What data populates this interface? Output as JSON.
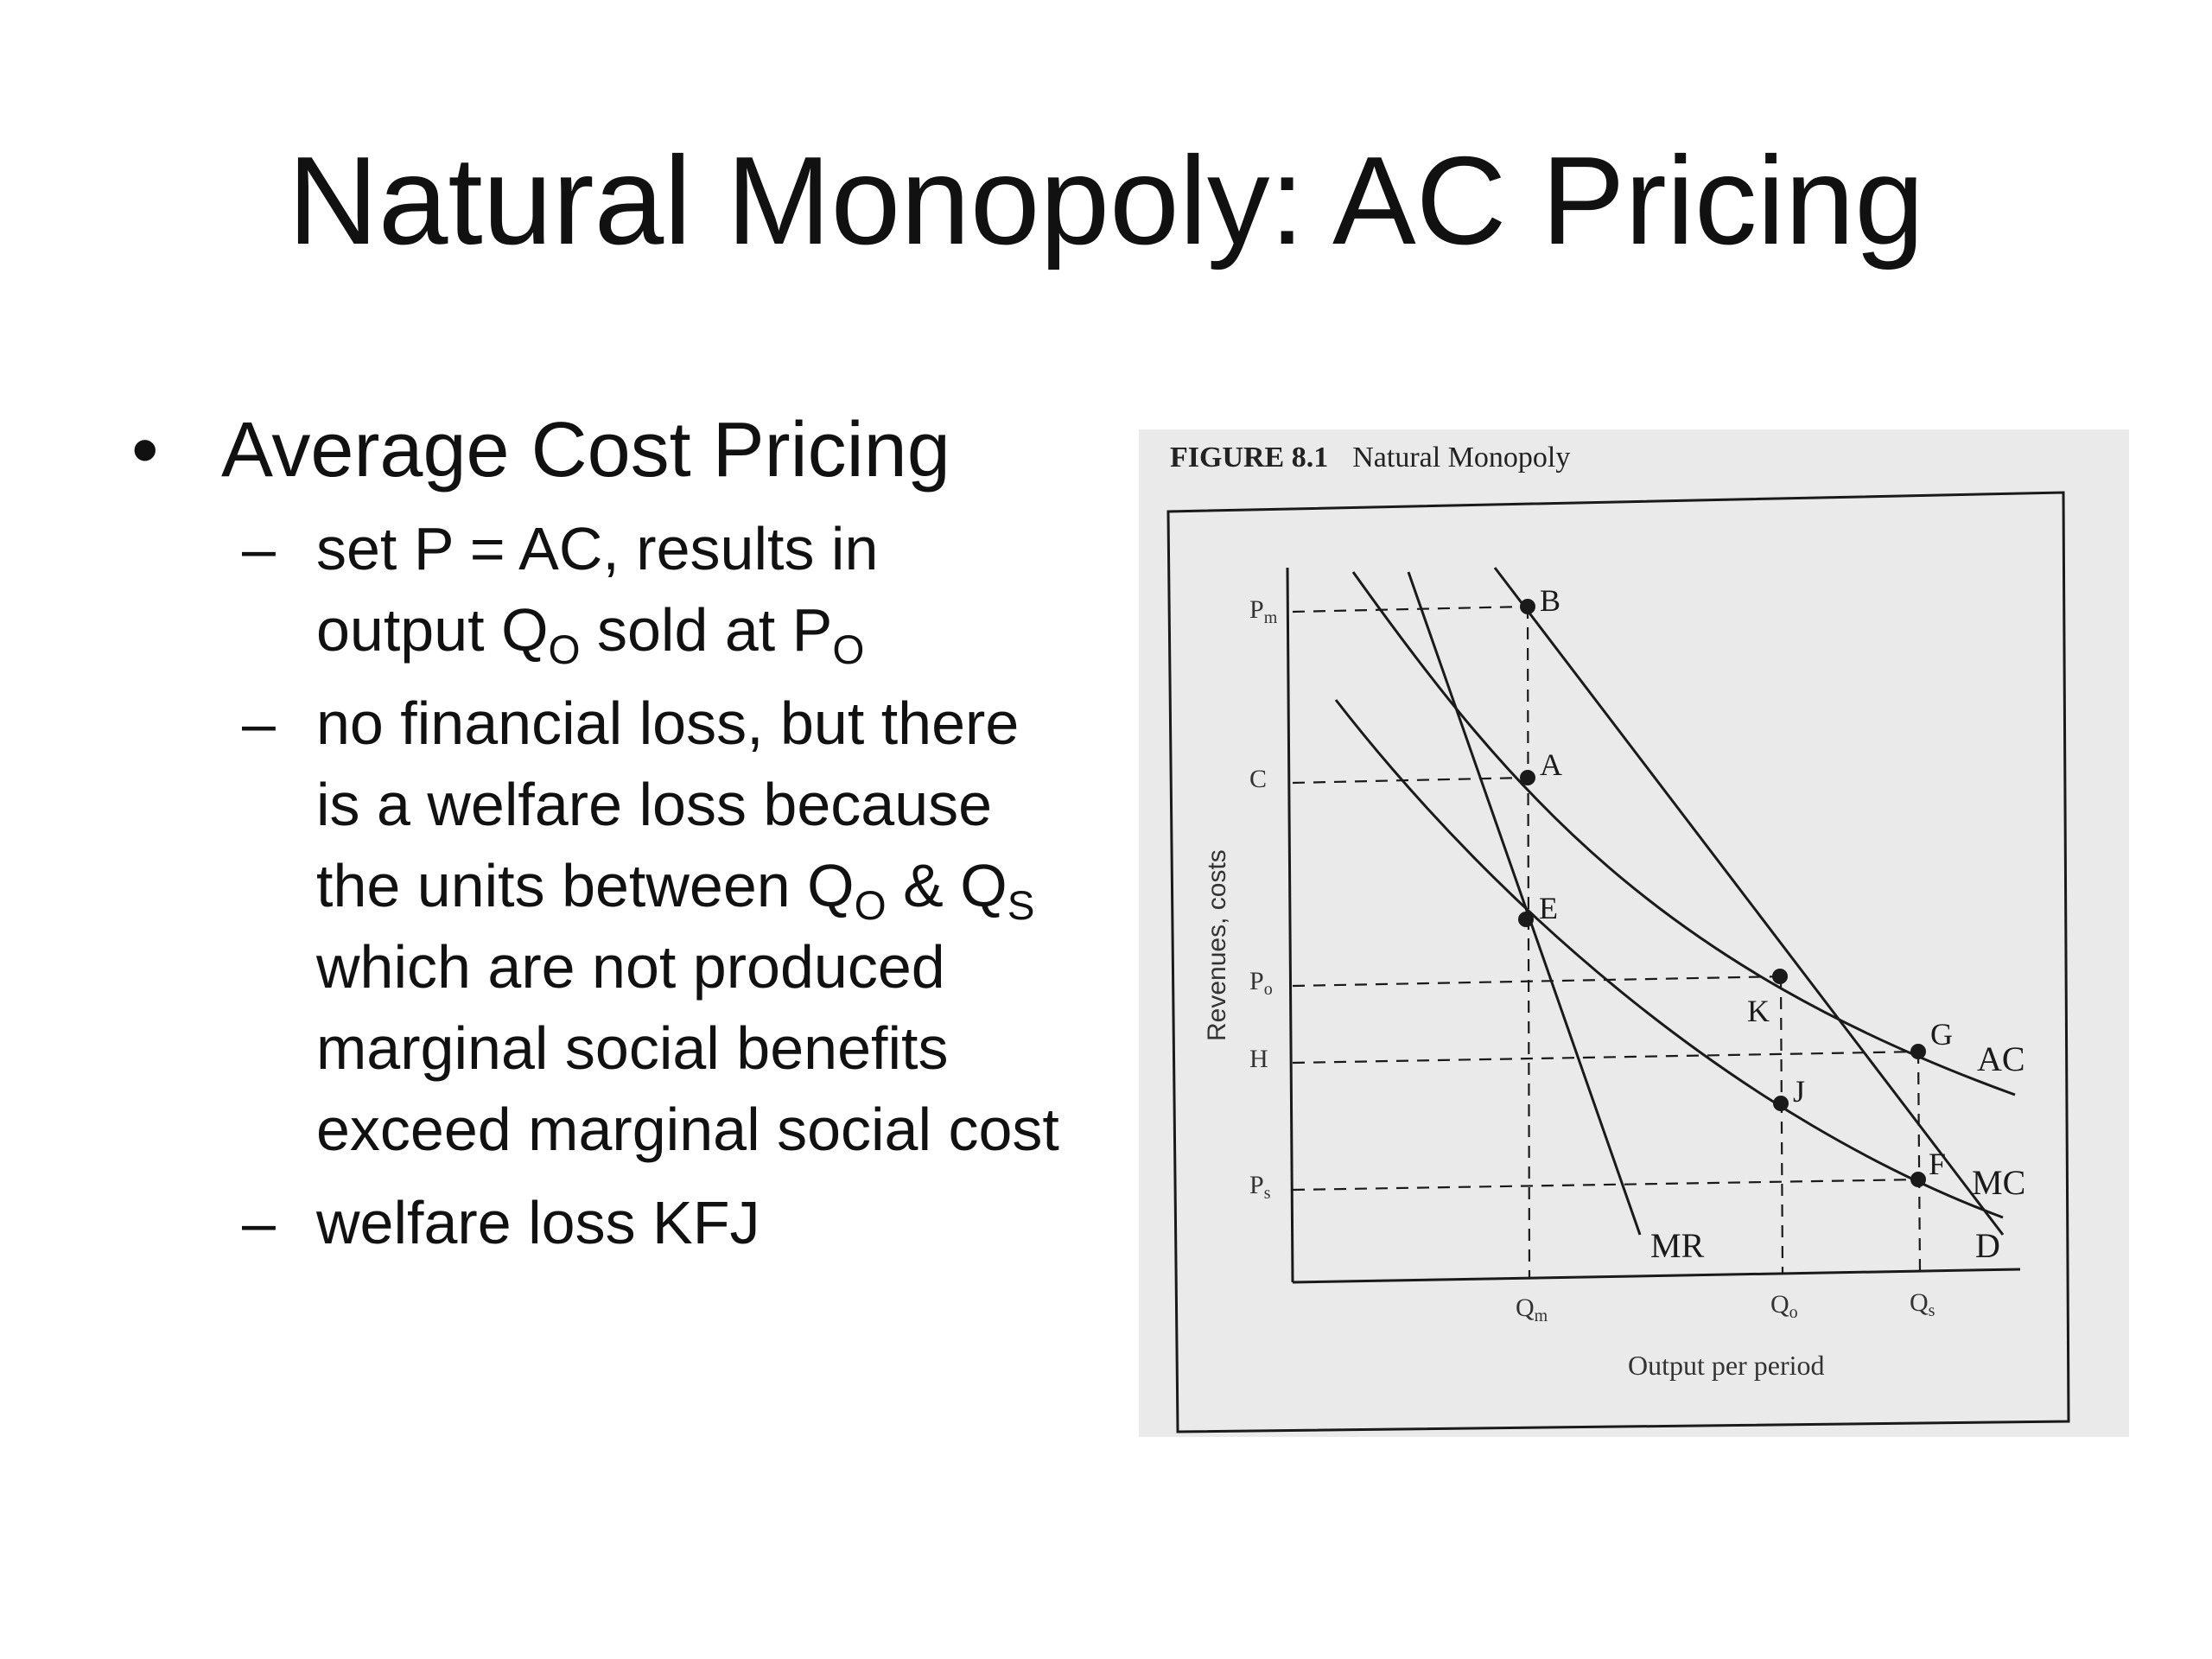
{
  "slide": {
    "title": "Natural Monopoly: AC Pricing"
  },
  "bullets": {
    "main": "Average Cost Pricing",
    "sub1": {
      "a": "set P = AC, results in output Q",
      "b": "O",
      "c": " sold at P",
      "d": "O"
    },
    "sub2": {
      "a": "no financial loss, but there is a welfare loss because the units between Q",
      "b": "O",
      "c": " & Q",
      "d": "S",
      "e": " which are not produced marginal social benefits exceed marginal social cost"
    },
    "sub3": "welfare loss KFJ"
  },
  "figure": {
    "caption_number": "FIGURE 8.1",
    "caption_title": "Natural Monopoly",
    "ylabel": "Revenues, costs",
    "xlabel": "Output per period",
    "y_ticks": {
      "Pm": "P",
      "Pm_sub": "m",
      "C": "C",
      "Po": "P",
      "Po_sub": "o",
      "H": "H",
      "Ps": "P",
      "Ps_sub": "s"
    },
    "x_ticks": {
      "Qm": "Q",
      "Qm_sub": "m",
      "Qo": "Q",
      "Qo_sub": "o",
      "Qs": "Q",
      "Qs_sub": "s"
    },
    "curve_labels": {
      "AC": "AC",
      "MC": "MC",
      "MR": "MR",
      "D": "D"
    },
    "points": {
      "B": "B",
      "A": "A",
      "E": "E",
      "K": "K",
      "J": "J",
      "G": "G",
      "F": "F"
    },
    "colors": {
      "ink": "#1a1a1a",
      "panel": "#eaeaea"
    }
  }
}
